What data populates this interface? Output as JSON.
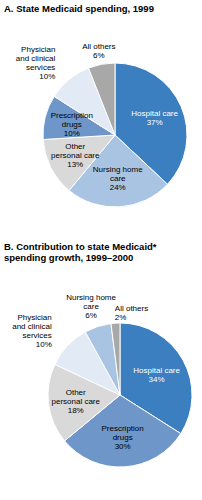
{
  "chart_data": [
    {
      "type": "pie",
      "title": "A. State Medicaid spending, 1999",
      "categories": [
        "Hospital care",
        "Nursing home care",
        "Other personal care",
        "Prescription drugs",
        "Physician and clinical services",
        "All others"
      ],
      "values": [
        37,
        24,
        13,
        10,
        10,
        6
      ],
      "value_labels": [
        "37%",
        "24%",
        "13%",
        "10%",
        "10%",
        "6%"
      ],
      "colors": [
        "#3b7fc0",
        "#a9c3e3",
        "#d9d9d9",
        "#6f96c8",
        "#e1eaf5",
        "#a8a8a8"
      ],
      "data_labels": true
    },
    {
      "type": "pie",
      "title": "B. Contribution to state Medicaid* spending growth, 1999–2000",
      "categories": [
        "Hospital care",
        "Prescription drugs",
        "Other personal care",
        "Physician and clinical services",
        "Nursing home care",
        "All others"
      ],
      "values": [
        34,
        30,
        18,
        10,
        6,
        2
      ],
      "value_labels": [
        "34%",
        "30%",
        "18%",
        "10%",
        "6%",
        "2%"
      ],
      "colors": [
        "#3b7fc0",
        "#6f96c8",
        "#d9d9d9",
        "#e1eaf5",
        "#a9c3e3",
        "#a8a8a8"
      ],
      "data_labels": true
    }
  ]
}
